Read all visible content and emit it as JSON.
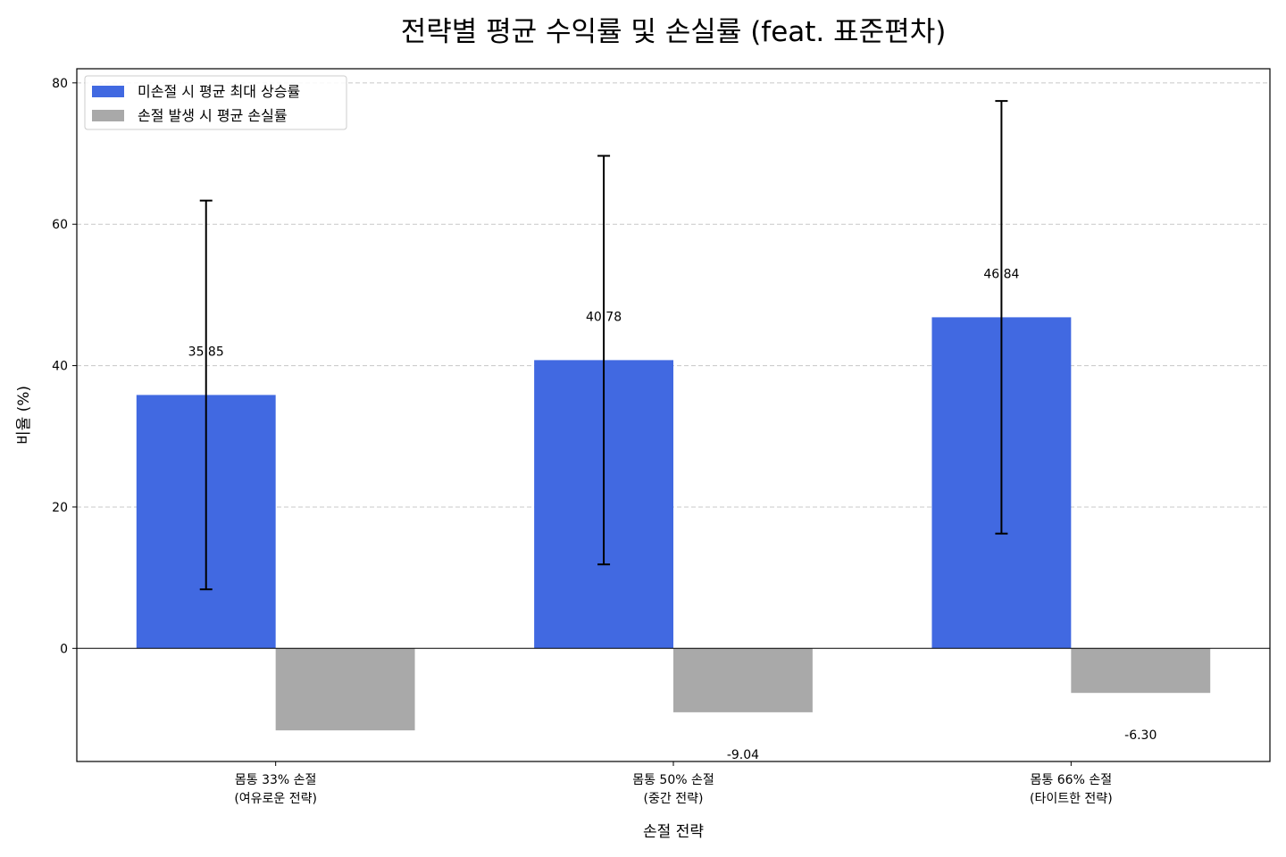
{
  "chart_data": {
    "type": "bar",
    "title": "전략별 평균 수익률 및 손실률 (feat. 표준편차)",
    "xlabel": "손절 전략",
    "ylabel": "비율 (%)",
    "ylim": [
      -16,
      82
    ],
    "yticks": [
      0,
      20,
      40,
      60,
      80
    ],
    "grid": "y",
    "legend_position": "top-left",
    "categories": [
      [
        "몸통 33% 손절",
        "(여유로운 전략)"
      ],
      [
        "몸통 50% 손절",
        "(중간 전략)"
      ],
      [
        "몸통 66% 손절",
        "(타이트한 전략)"
      ]
    ],
    "series": [
      {
        "name": "미손절 시 평균 최대 상승률",
        "color": "#4169e1",
        "values": [
          35.85,
          40.78,
          46.84
        ],
        "value_labels": [
          "35.85",
          "40.78",
          "46.84"
        ],
        "error": [
          27.5,
          28.9,
          30.6
        ]
      },
      {
        "name": "손절 발생 시 평균 손실률",
        "color": "#a9a9a9",
        "values": [
          -11.6,
          -9.04,
          -6.3
        ],
        "value_labels": [
          "",
          "-9.04",
          "-6.30"
        ]
      }
    ]
  }
}
